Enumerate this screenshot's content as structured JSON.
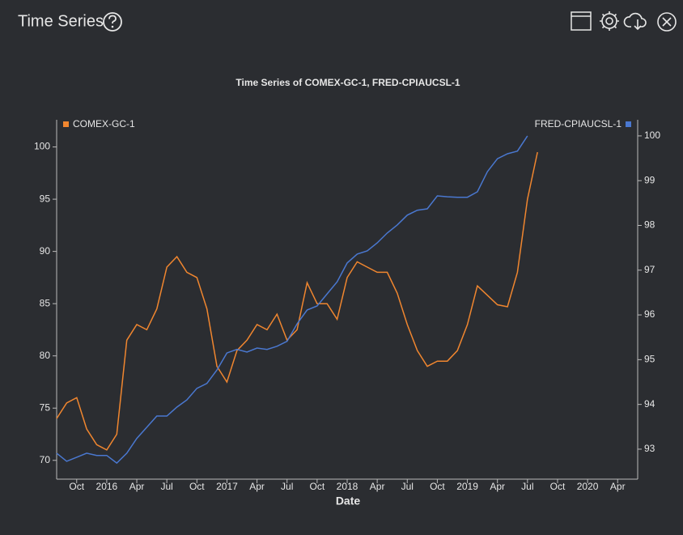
{
  "header": {
    "title": "Time Series"
  },
  "chart_data": {
    "type": "line",
    "title": "Time Series of COMEX-GC-1, FRED-CPIAUCSL-1",
    "xlabel": "Date",
    "xlim": [
      "2015-08",
      "2020-06"
    ],
    "xticks": [
      {
        "value": "2015-10",
        "label": "Oct"
      },
      {
        "value": "2016-01",
        "label": "2016"
      },
      {
        "value": "2016-04",
        "label": "Apr"
      },
      {
        "value": "2016-07",
        "label": "Jul"
      },
      {
        "value": "2016-10",
        "label": "Oct"
      },
      {
        "value": "2017-01",
        "label": "2017"
      },
      {
        "value": "2017-04",
        "label": "Apr"
      },
      {
        "value": "2017-07",
        "label": "Jul"
      },
      {
        "value": "2017-10",
        "label": "Oct"
      },
      {
        "value": "2018-01",
        "label": "2018"
      },
      {
        "value": "2018-04",
        "label": "Apr"
      },
      {
        "value": "2018-07",
        "label": "Jul"
      },
      {
        "value": "2018-10",
        "label": "Oct"
      },
      {
        "value": "2019-01",
        "label": "2019"
      },
      {
        "value": "2019-04",
        "label": "Apr"
      },
      {
        "value": "2019-07",
        "label": "Jul"
      },
      {
        "value": "2019-10",
        "label": "Oct"
      },
      {
        "value": "2020-01",
        "label": "2020"
      },
      {
        "value": "2020-04",
        "label": "Apr"
      }
    ],
    "ylim": [
      68.2,
      102.6
    ],
    "yticks": [
      70,
      75,
      80,
      85,
      90,
      95,
      100
    ],
    "y2lim": [
      92.33,
      100.36
    ],
    "y2ticks": [
      93,
      94,
      95,
      96,
      97,
      98,
      99,
      100
    ],
    "series": [
      {
        "name": "COMEX-GC-1",
        "color": "#f0862f",
        "axis": "y",
        "legend": "upper left",
        "x": [
          "2015-08",
          "2015-09",
          "2015-10",
          "2015-11",
          "2015-12",
          "2016-01",
          "2016-02",
          "2016-03",
          "2016-04",
          "2016-05",
          "2016-06",
          "2016-07",
          "2016-08",
          "2016-09",
          "2016-10",
          "2016-11",
          "2016-12",
          "2017-01",
          "2017-02",
          "2017-03",
          "2017-04",
          "2017-05",
          "2017-06",
          "2017-07",
          "2017-08",
          "2017-09",
          "2017-10",
          "2017-11",
          "2017-12",
          "2018-01",
          "2018-02",
          "2018-03",
          "2018-04",
          "2018-05",
          "2018-06",
          "2018-07",
          "2018-08",
          "2018-09",
          "2018-10",
          "2018-11",
          "2018-12",
          "2019-01",
          "2019-02",
          "2019-03",
          "2019-04",
          "2019-05",
          "2019-06",
          "2019-07",
          "2019-08"
        ],
        "values": [
          74,
          75.5,
          76,
          73,
          71.5,
          71,
          72.5,
          81.5,
          83,
          82.5,
          84.5,
          88.5,
          89.5,
          88,
          87.5,
          84.5,
          79,
          77.5,
          80.5,
          81.5,
          83,
          82.5,
          84,
          81.5,
          82.5,
          87,
          85,
          85,
          83.5,
          87.5,
          89,
          88.5,
          88,
          88,
          86,
          83,
          80.5,
          79,
          79.5,
          79.5,
          80.5,
          83,
          86.7,
          85.8,
          84.9,
          84.7,
          88,
          95,
          99.5
        ]
      },
      {
        "name": "FRED-CPIAUCSL-1",
        "color": "#4a78d0",
        "axis": "y2",
        "legend": "upper right",
        "x": [
          "2015-08",
          "2015-09",
          "2015-10",
          "2015-11",
          "2015-12",
          "2016-01",
          "2016-02",
          "2016-03",
          "2016-04",
          "2016-05",
          "2016-06",
          "2016-07",
          "2016-08",
          "2016-09",
          "2016-10",
          "2016-11",
          "2016-12",
          "2017-01",
          "2017-02",
          "2017-03",
          "2017-04",
          "2017-05",
          "2017-06",
          "2017-07",
          "2017-08",
          "2017-09",
          "2017-10",
          "2017-11",
          "2017-12",
          "2018-01",
          "2018-02",
          "2018-03",
          "2018-04",
          "2018-05",
          "2018-06",
          "2018-07",
          "2018-08",
          "2018-09",
          "2018-10",
          "2018-11",
          "2018-12",
          "2019-01",
          "2019-02",
          "2019-03",
          "2019-04",
          "2019-05",
          "2019-06",
          "2019-07"
        ],
        "values": [
          92.91,
          92.73,
          92.82,
          92.91,
          92.86,
          92.86,
          92.69,
          92.91,
          93.24,
          93.49,
          93.74,
          93.74,
          93.94,
          94.1,
          94.36,
          94.47,
          94.77,
          95.15,
          95.23,
          95.17,
          95.26,
          95.23,
          95.3,
          95.41,
          95.8,
          96.11,
          96.2,
          96.47,
          96.74,
          97.16,
          97.36,
          97.43,
          97.61,
          97.83,
          98.01,
          98.23,
          98.34,
          98.37,
          98.66,
          98.64,
          98.63,
          98.63,
          98.75,
          99.2,
          99.49,
          99.6,
          99.66,
          100.0
        ]
      }
    ]
  }
}
